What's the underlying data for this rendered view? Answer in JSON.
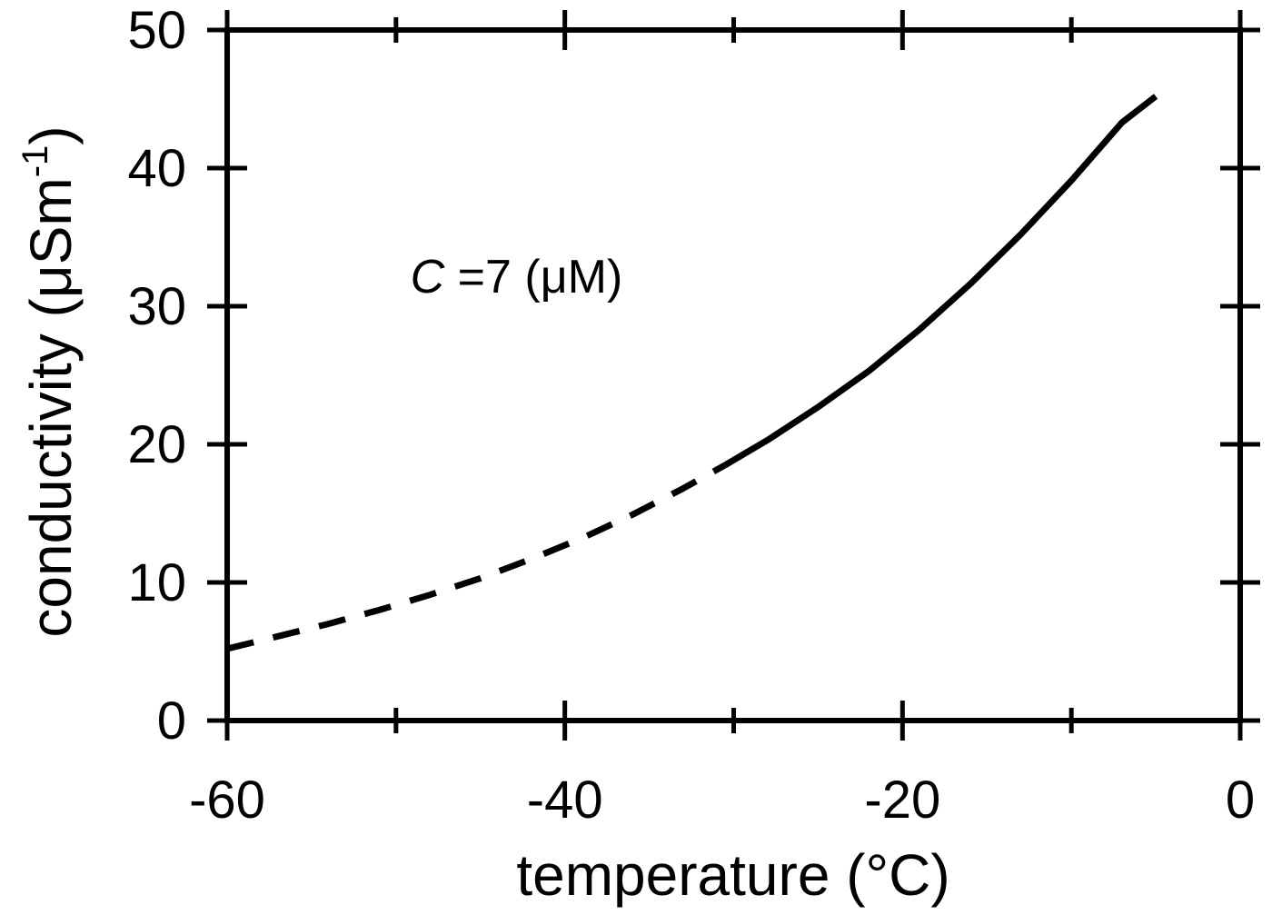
{
  "chart_data": {
    "type": "line",
    "title": "",
    "xlabel": "temperature (°C)",
    "ylabel_main": "conductivity (μSm",
    "ylabel_sup": "-1",
    "ylabel_close": ")",
    "xlim": [
      -60,
      0
    ],
    "ylim": [
      0,
      50
    ],
    "xticks": [
      -60,
      -40,
      -20,
      0
    ],
    "xticklabels": [
      "-60",
      "-40",
      "-20",
      "0"
    ],
    "yticks": [
      0,
      10,
      20,
      30,
      40,
      50
    ],
    "yticklabels": [
      "0",
      "10",
      "20",
      "30",
      "40",
      "50"
    ],
    "x_minor_ticks": [
      -50,
      -30,
      -10
    ],
    "grid": false,
    "legend": "none",
    "annotation": {
      "italic": "C",
      "rest": " =7 (μM)",
      "at": [
        -40,
        31
      ]
    },
    "series": [
      {
        "style": "dashed",
        "x": [
          -60,
          -57,
          -54,
          -51,
          -48,
          -45,
          -42,
          -39,
          -36,
          -33,
          -30.5
        ],
        "y": [
          5.2,
          6.1,
          7.0,
          8.0,
          9.1,
          10.3,
          11.7,
          13.2,
          14.9,
          16.8,
          18.5
        ]
      },
      {
        "style": "solid",
        "x": [
          -30.5,
          -28,
          -25,
          -22,
          -19,
          -16,
          -13,
          -10,
          -7,
          -5
        ],
        "y": [
          18.5,
          20.3,
          22.7,
          25.3,
          28.3,
          31.6,
          35.2,
          39.1,
          43.3,
          45.2
        ]
      }
    ]
  }
}
